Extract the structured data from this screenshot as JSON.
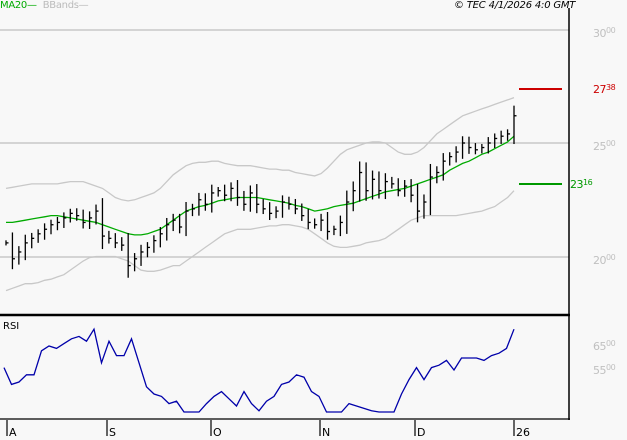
{
  "legend": {
    "ma_label": "MA20",
    "ma_dash": "—",
    "bb_label": "BBands",
    "bb_dash": "—"
  },
  "copyright": "© TEC 4/1/2026 4:0 GMT",
  "price_axis": [
    {
      "main": "30",
      "sup": "00",
      "value": 3000
    },
    {
      "main": "25",
      "sup": "00",
      "value": 2500
    },
    {
      "main": "20",
      "sup": "00",
      "value": 2000
    }
  ],
  "levels": {
    "resistance": {
      "main": "27",
      "sup": "38",
      "value": 2738,
      "color": "#cc0000"
    },
    "support": {
      "main": "23",
      "sup": "16",
      "value": 2316,
      "color": "#009900"
    }
  },
  "rsi": {
    "title": "RSI",
    "axis": [
      {
        "main": "65",
        "sup": "00",
        "value": 65
      },
      {
        "main": "55",
        "sup": "00",
        "value": 55
      }
    ]
  },
  "x_labels": [
    "A",
    "S",
    "O",
    "N",
    "D",
    "26"
  ],
  "colors": {
    "ma": "#00aa00",
    "bbands": "#c8c8c8",
    "bars": "#000000",
    "rsi": "#0000aa",
    "grid": "#c8c8c8",
    "resistance": "#cc0000",
    "support": "#009900"
  },
  "chart_data": [
    {
      "type": "ohlc",
      "title": "Price with MA20 and Bollinger Bands",
      "xlabel": "",
      "ylabel": "",
      "x_ticks": [
        "A",
        "S",
        "O",
        "N",
        "D",
        "26"
      ],
      "y_ticks": [
        2000,
        2500,
        3000
      ],
      "ylim": [
        1760,
        3080
      ],
      "grid": true,
      "legend": [
        "MA20",
        "BBands"
      ],
      "annotations": [
        {
          "label": "2738",
          "type": "resistance",
          "value": 2738
        },
        {
          "label": "2316",
          "type": "support",
          "value": 2316
        }
      ],
      "series": [
        {
          "name": "Close",
          "values": [
            2060,
            1990,
            2020,
            2060,
            2080,
            2100,
            2120,
            2140,
            2150,
            2170,
            2190,
            2180,
            2150,
            2170,
            2200,
            2090,
            2080,
            2060,
            2050,
            1960,
            1990,
            2020,
            2040,
            2070,
            2100,
            2140,
            2160,
            2130,
            2200,
            2210,
            2250,
            2230,
            2280,
            2290,
            2270,
            2300,
            2260,
            2230,
            2280,
            2230,
            2210,
            2190,
            2200,
            2240,
            2230,
            2210,
            2180,
            2150,
            2140,
            2160,
            2110,
            2120,
            2150,
            2240,
            2290,
            2370,
            2290,
            2340,
            2290,
            2330,
            2320,
            2290,
            2310,
            2270,
            2200,
            2240,
            2350,
            2370,
            2420,
            2440,
            2460,
            2500,
            2480,
            2470,
            2480,
            2500,
            2520,
            2530,
            2540,
            2620
          ]
        },
        {
          "name": "MA20",
          "values": [
            2150,
            2150,
            2155,
            2160,
            2165,
            2170,
            2175,
            2180,
            2180,
            2175,
            2170,
            2165,
            2160,
            2155,
            2150,
            2140,
            2130,
            2120,
            2110,
            2100,
            2095,
            2095,
            2100,
            2110,
            2120,
            2140,
            2160,
            2180,
            2200,
            2210,
            2220,
            2225,
            2235,
            2245,
            2250,
            2255,
            2260,
            2260,
            2260,
            2260,
            2255,
            2250,
            2245,
            2240,
            2235,
            2225,
            2220,
            2210,
            2200,
            2205,
            2210,
            2220,
            2225,
            2230,
            2235,
            2245,
            2255,
            2265,
            2275,
            2285,
            2290,
            2295,
            2300,
            2310,
            2320,
            2330,
            2340,
            2350,
            2360,
            2380,
            2395,
            2410,
            2420,
            2435,
            2450,
            2460,
            2475,
            2490,
            2505,
            2530
          ]
        },
        {
          "name": "BBand Upper",
          "values": [
            2300,
            2305,
            2310,
            2315,
            2320,
            2320,
            2320,
            2320,
            2320,
            2325,
            2330,
            2330,
            2330,
            2320,
            2310,
            2300,
            2280,
            2260,
            2250,
            2245,
            2250,
            2260,
            2270,
            2280,
            2300,
            2330,
            2360,
            2380,
            2400,
            2410,
            2415,
            2415,
            2420,
            2420,
            2410,
            2405,
            2400,
            2400,
            2400,
            2395,
            2390,
            2385,
            2385,
            2380,
            2380,
            2370,
            2365,
            2360,
            2355,
            2365,
            2390,
            2420,
            2450,
            2470,
            2480,
            2490,
            2500,
            2505,
            2505,
            2500,
            2480,
            2460,
            2450,
            2450,
            2460,
            2480,
            2510,
            2540,
            2560,
            2580,
            2600,
            2620,
            2630,
            2640,
            2650,
            2660,
            2670,
            2680,
            2690,
            2700
          ]
        },
        {
          "name": "BBand Lower",
          "values": [
            1850,
            1860,
            1870,
            1880,
            1880,
            1885,
            1895,
            1900,
            1910,
            1920,
            1940,
            1960,
            1980,
            1995,
            2000,
            2000,
            2000,
            2000,
            1990,
            1980,
            1960,
            1940,
            1935,
            1935,
            1940,
            1950,
            1960,
            1960,
            1980,
            2000,
            2020,
            2040,
            2060,
            2080,
            2100,
            2110,
            2120,
            2120,
            2120,
            2125,
            2130,
            2135,
            2135,
            2140,
            2140,
            2135,
            2130,
            2120,
            2100,
            2080,
            2060,
            2045,
            2040,
            2040,
            2045,
            2050,
            2060,
            2065,
            2070,
            2080,
            2100,
            2120,
            2140,
            2160,
            2170,
            2180,
            2180,
            2180,
            2180,
            2180,
            2180,
            2185,
            2190,
            2195,
            2200,
            2210,
            2220,
            2240,
            2260,
            2290
          ]
        }
      ]
    },
    {
      "type": "line",
      "title": "RSI",
      "xlabel": "",
      "ylabel": "",
      "x_ticks": [
        "A",
        "S",
        "O",
        "N",
        "D",
        "26"
      ],
      "y_ticks": [
        55,
        65
      ],
      "ylim": [
        25,
        80
      ],
      "grid": false,
      "series": [
        {
          "name": "RSI",
          "values": [
            56,
            49,
            50,
            53,
            53,
            63,
            65,
            64,
            66,
            68,
            69,
            67,
            72,
            58,
            67,
            61,
            61,
            68,
            58,
            48,
            45,
            44,
            41,
            42,
            35,
            31,
            35,
            41,
            44,
            46,
            43,
            40,
            46,
            41,
            38,
            42,
            44,
            49,
            50,
            53,
            52,
            46,
            44,
            37,
            32,
            35,
            41,
            40,
            39,
            38,
            34,
            26,
            32,
            45,
            51,
            56,
            51,
            56,
            57,
            59,
            55,
            60,
            60,
            60,
            59,
            61,
            62,
            64,
            72
          ]
        }
      ]
    }
  ]
}
